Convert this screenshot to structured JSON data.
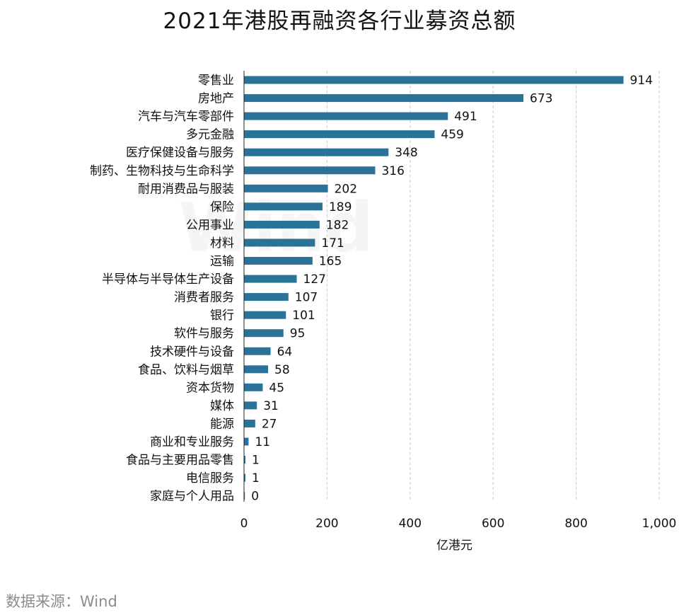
{
  "source": "数据来源：Wind",
  "watermark": "Wind",
  "colors": {
    "bar": "#2b7298",
    "grid": "#c8c8c8",
    "axis": "#222222"
  },
  "chart_data": {
    "type": "bar",
    "orientation": "horizontal",
    "title": "2021年港股再融资各行业募资总额",
    "xlabel": "亿港元",
    "ylabel": "",
    "xlim": [
      0,
      1000
    ],
    "xticks": [
      0,
      200,
      400,
      600,
      800,
      1000
    ],
    "xtick_labels": [
      "0",
      "200",
      "400",
      "600",
      "800",
      "1,000"
    ],
    "grid": "vertical dashed",
    "categories": [
      "零售业",
      "房地产",
      "汽车与汽车零部件",
      "多元金融",
      "医疗保健设备与服务",
      "制药、生物科技与生命科学",
      "耐用消费品与服装",
      "保险",
      "公用事业",
      "材料",
      "运输",
      "半导体与半导体生产设备",
      "消费者服务",
      "银行",
      "软件与服务",
      "技术硬件与设备",
      "食品、饮料与烟草",
      "资本货物",
      "媒体",
      "能源",
      "商业和专业服务",
      "食品与主要用品零售",
      "电信服务",
      "家庭与个人用品"
    ],
    "values": [
      914,
      673,
      491,
      459,
      348,
      316,
      202,
      189,
      182,
      171,
      165,
      127,
      107,
      101,
      95,
      64,
      58,
      45,
      31,
      27,
      11,
      1,
      1,
      0
    ]
  }
}
